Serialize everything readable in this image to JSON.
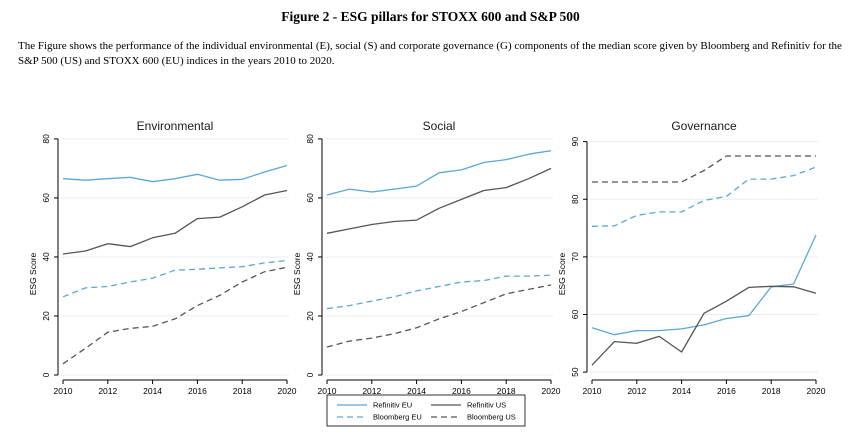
{
  "figure": {
    "title": "Figure 2 - ESG pillars for STOXX 600 and S&P 500",
    "caption": "The Figure shows the performance of the individual environmental (E), social (S) and corporate governance (G) components of the median score given by Bloomberg and Refinitiv for the S&P 500 (US) and STOXX 600 (EU) indices in the years 2010 to 2020."
  },
  "series_styles": [
    {
      "name": "Refinitiv EU",
      "color": "#5aa8d6",
      "dash": "solid"
    },
    {
      "name": "Refinitiv US",
      "color": "#555555",
      "dash": "solid"
    },
    {
      "name": "Bloomberg EU",
      "color": "#5aa8d6",
      "dash": "dashed"
    },
    {
      "name": "Bloomberg US",
      "color": "#555555",
      "dash": "dashed"
    }
  ],
  "legend": {
    "position": "bottom-center",
    "items": [
      "Refinitiv EU",
      "Refinitiv US",
      "Bloomberg EU",
      "Bloomberg US"
    ]
  },
  "chart_data": [
    {
      "type": "line",
      "title": "Environmental",
      "ylabel": "ESG Score",
      "xlabel": "",
      "x": [
        2010,
        2011,
        2012,
        2013,
        2014,
        2015,
        2016,
        2017,
        2018,
        2019,
        2020
      ],
      "xticks": [
        2010,
        2012,
        2014,
        2016,
        2018,
        2020
      ],
      "yticks": [
        0,
        20,
        40,
        60,
        80
      ],
      "ylim": [
        0,
        82
      ],
      "grid": true,
      "series": [
        {
          "name": "Refinitiv EU",
          "values": [
            66.5,
            66,
            66.5,
            67,
            65.5,
            66.5,
            68,
            66,
            66.3,
            68.8,
            71
          ]
        },
        {
          "name": "Refinitiv US",
          "values": [
            41,
            42,
            44.5,
            43.5,
            46.5,
            48,
            53,
            53.5,
            57,
            61,
            62.5
          ]
        },
        {
          "name": "Bloomberg EU",
          "values": [
            26.5,
            29.5,
            30,
            31.5,
            32.8,
            35.5,
            35.8,
            36.3,
            36.7,
            38,
            38.8
          ]
        },
        {
          "name": "Bloomberg US",
          "values": [
            3.8,
            9,
            14.5,
            15.8,
            16.5,
            19,
            23.5,
            27,
            31.5,
            35,
            36.5
          ]
        }
      ]
    },
    {
      "type": "line",
      "title": "Social",
      "ylabel": "ESG Score",
      "xlabel": "",
      "x": [
        2010,
        2011,
        2012,
        2013,
        2014,
        2015,
        2016,
        2017,
        2018,
        2019,
        2020
      ],
      "xticks": [
        2010,
        2012,
        2014,
        2016,
        2018,
        2020
      ],
      "yticks": [
        0,
        20,
        40,
        60,
        80
      ],
      "ylim": [
        0,
        82
      ],
      "grid": true,
      "series": [
        {
          "name": "Refinitiv EU",
          "values": [
            61,
            63,
            62,
            63,
            64,
            68.5,
            69.5,
            72,
            73,
            74.8,
            76
          ]
        },
        {
          "name": "Refinitiv US",
          "values": [
            48,
            49.5,
            51,
            52,
            52.5,
            56.5,
            59.5,
            62.5,
            63.5,
            66.5,
            70
          ]
        },
        {
          "name": "Bloomberg EU",
          "values": [
            22.5,
            23.5,
            25,
            26.5,
            28.5,
            30,
            31.5,
            32,
            33.5,
            33.5,
            33.8
          ]
        },
        {
          "name": "Bloomberg US",
          "values": [
            9.5,
            11.5,
            12.5,
            14,
            16,
            19,
            21.5,
            24.5,
            27.5,
            29,
            30.5
          ]
        }
      ]
    },
    {
      "type": "line",
      "title": "Governance",
      "ylabel": "ESG Score",
      "xlabel": "",
      "x": [
        2010,
        2011,
        2012,
        2013,
        2014,
        2015,
        2016,
        2017,
        2018,
        2019,
        2020
      ],
      "xticks": [
        2010,
        2012,
        2014,
        2016,
        2018,
        2020
      ],
      "yticks": [
        50,
        60,
        70,
        80,
        90
      ],
      "ylim": [
        49.5,
        91.5
      ],
      "grid": true,
      "series": [
        {
          "name": "Refinitiv EU",
          "values": [
            57.7,
            56.5,
            57.2,
            57.2,
            57.5,
            58.2,
            59.3,
            59.8,
            64.8,
            65.3,
            73.8
          ]
        },
        {
          "name": "Refinitiv US",
          "values": [
            51.2,
            55.3,
            55,
            56.2,
            53.5,
            60.2,
            62.3,
            64.7,
            64.9,
            64.8,
            63.7
          ]
        },
        {
          "name": "Bloomberg EU",
          "values": [
            75.3,
            75.4,
            77.2,
            77.8,
            77.8,
            79.8,
            80.5,
            83.5,
            83.5,
            84.1,
            85.6
          ]
        },
        {
          "name": "Bloomberg US",
          "values": [
            83,
            83,
            83,
            83,
            83,
            85,
            87.5,
            87.5,
            87.5,
            87.5,
            87.5
          ]
        }
      ]
    }
  ]
}
